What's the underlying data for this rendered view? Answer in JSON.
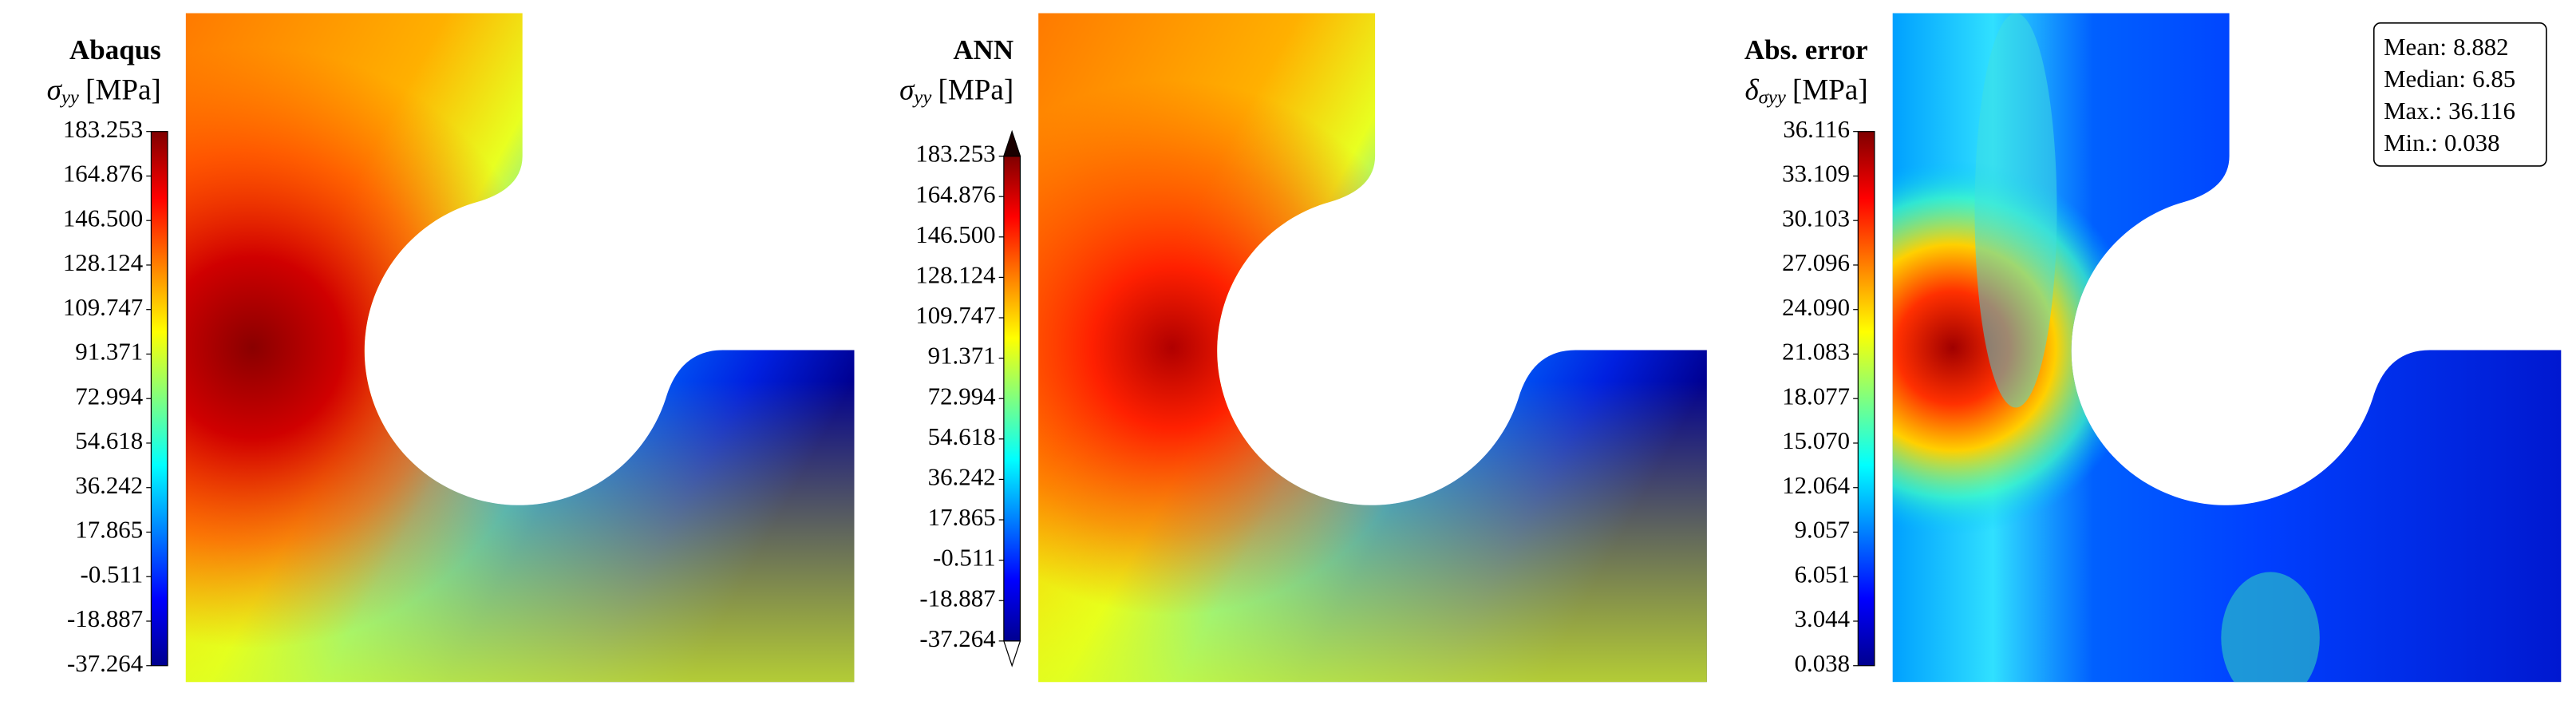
{
  "chart_data": [
    {
      "type": "contour",
      "title": "Abaqus",
      "symbol": "σ",
      "subscript": "yy",
      "unit": "[MPa]",
      "colormap": "jet",
      "extend": false,
      "clim": [
        -37.264,
        183.253
      ],
      "ticks": [
        -37.264,
        -18.887,
        -0.511,
        17.865,
        36.242,
        54.618,
        72.994,
        91.371,
        109.747,
        128.124,
        {
          "value": 146.5,
          "label": "146.500"
        },
        164.876,
        183.253
      ]
    },
    {
      "type": "contour",
      "title": "ANN",
      "symbol": "σ",
      "subscript": "yy",
      "unit": "[MPa]",
      "colormap": "jet",
      "extend": true,
      "clim": [
        -37.264,
        183.253
      ],
      "ticks": [
        -37.264,
        -18.887,
        -0.511,
        17.865,
        36.242,
        54.618,
        72.994,
        91.371,
        109.747,
        128.124,
        {
          "value": 146.5,
          "label": "146.500"
        },
        164.876,
        183.253
      ]
    },
    {
      "type": "contour",
      "title": "Abs. error",
      "symbol": "δ",
      "subscript": "σyy",
      "unit": "[MPa]",
      "colormap": "jet",
      "extend": false,
      "clim": [
        0.038,
        36.116
      ],
      "ticks": [
        0.038,
        3.044,
        6.051,
        9.057,
        12.064,
        {
          "value": 15.07,
          "label": "15.070"
        },
        18.077,
        21.083,
        {
          "value": 24.09,
          "label": "24.090"
        },
        27.096,
        30.103,
        33.109,
        36.116
      ],
      "stats": [
        {
          "label": "Mean:",
          "value": 8.882
        },
        {
          "label": "Median:",
          "value": 6.85
        },
        {
          "label": "Max.:",
          "value": 36.116
        },
        {
          "label": "Min.:",
          "value": 0.038
        }
      ]
    }
  ]
}
